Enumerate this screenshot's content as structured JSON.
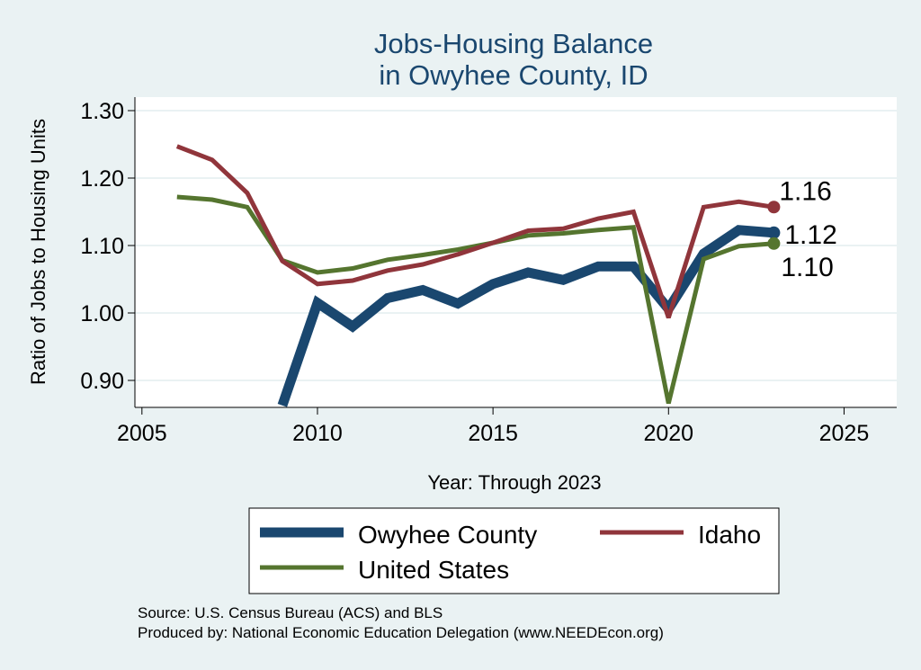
{
  "colors": {
    "background": "#eaf2f3",
    "title": "#1a476f",
    "owyhee": "#1a476f",
    "idaho": "#90353b",
    "us": "#55752f"
  },
  "chart_data": {
    "type": "line",
    "title": [
      "Jobs-Housing Balance",
      "in Owyhee County, ID"
    ],
    "xlabel": "Year: Through 2023",
    "ylabel": "Ratio of Jobs to Housing Units",
    "xlim": [
      2004.8,
      2026.5
    ],
    "ylim": [
      0.86,
      1.32
    ],
    "xticks": [
      2005,
      2010,
      2015,
      2020,
      2025
    ],
    "xtick_labels": [
      "2005",
      "2010",
      "2015",
      "2020",
      "2025"
    ],
    "yticks": [
      0.9,
      1.0,
      1.1,
      1.2,
      1.3
    ],
    "ytick_labels": [
      "0.90",
      "1.00",
      "1.10",
      "1.20",
      "1.30"
    ],
    "grid": true,
    "legend_position": "bottom",
    "series": [
      {
        "name": "Owyhee County",
        "color": "#1a476f",
        "x": [
          2009,
          2010,
          2011,
          2012,
          2013,
          2014,
          2015,
          2016,
          2017,
          2018,
          2019,
          2020,
          2021,
          2022,
          2023
        ],
        "values": [
          0.863,
          1.015,
          0.98,
          1.022,
          1.034,
          1.014,
          1.043,
          1.06,
          1.049,
          1.069,
          1.069,
          1.006,
          1.088,
          1.123,
          1.119
        ],
        "end_label": "1.12"
      },
      {
        "name": "Idaho",
        "color": "#90353b",
        "x": [
          2006,
          2007,
          2008,
          2009,
          2010,
          2011,
          2012,
          2013,
          2014,
          2015,
          2016,
          2017,
          2018,
          2019,
          2020,
          2021,
          2022,
          2023
        ],
        "values": [
          1.247,
          1.227,
          1.178,
          1.077,
          1.043,
          1.048,
          1.063,
          1.072,
          1.087,
          1.104,
          1.122,
          1.125,
          1.14,
          1.15,
          0.993,
          1.157,
          1.165,
          1.157
        ],
        "end_label": "1.16"
      },
      {
        "name": "United States",
        "color": "#55752f",
        "x": [
          2006,
          2007,
          2008,
          2009,
          2010,
          2011,
          2012,
          2013,
          2014,
          2015,
          2016,
          2017,
          2018,
          2019,
          2020,
          2021,
          2022,
          2023
        ],
        "values": [
          1.172,
          1.168,
          1.157,
          1.078,
          1.06,
          1.066,
          1.079,
          1.086,
          1.094,
          1.104,
          1.115,
          1.118,
          1.123,
          1.127,
          0.866,
          1.08,
          1.099,
          1.103
        ],
        "end_label": "1.10"
      }
    ]
  },
  "notes": {
    "source": "Source: U.S. Census Bureau (ACS) and BLS",
    "produced": "Produced by: National Economic Education Delegation (www.NEEDEcon.org)"
  }
}
